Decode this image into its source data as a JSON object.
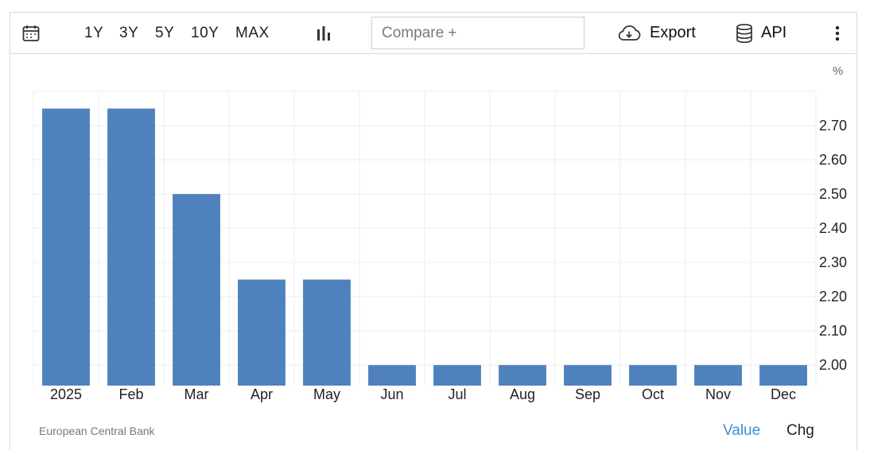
{
  "toolbar": {
    "calendar_icon": "calendar-icon",
    "ranges": [
      "1Y",
      "3Y",
      "5Y",
      "10Y",
      "MAX"
    ],
    "chart_type_icon": "bar-chart-icon",
    "compare_placeholder": "Compare +",
    "export_label": "Export",
    "export_icon": "cloud-download-icon",
    "api_label": "API",
    "api_icon": "database-icon",
    "more_icon": "vertical-dots-icon"
  },
  "footer": {
    "source": "European Central Bank",
    "value_label": "Value",
    "chg_label": "Chg"
  },
  "colors": {
    "bar": "#4f81bd",
    "active_tab": "#3a8fd9",
    "grid": "#eeeeee"
  },
  "chart_data": {
    "type": "bar",
    "unit": "%",
    "categories": [
      "2025",
      "Feb",
      "Mar",
      "Apr",
      "May",
      "Jun",
      "Jul",
      "Aug",
      "Sep",
      "Oct",
      "Nov",
      "Dec"
    ],
    "values": [
      2.75,
      2.75,
      2.5,
      2.25,
      2.25,
      2.0,
      2.0,
      2.0,
      2.0,
      2.0,
      2.0,
      2.0
    ],
    "yticks": [
      "2.00",
      "2.10",
      "2.20",
      "2.30",
      "2.40",
      "2.50",
      "2.60",
      "2.70"
    ],
    "ylim": [
      1.94,
      2.8
    ],
    "y_axis_position": "right",
    "grid": true
  }
}
